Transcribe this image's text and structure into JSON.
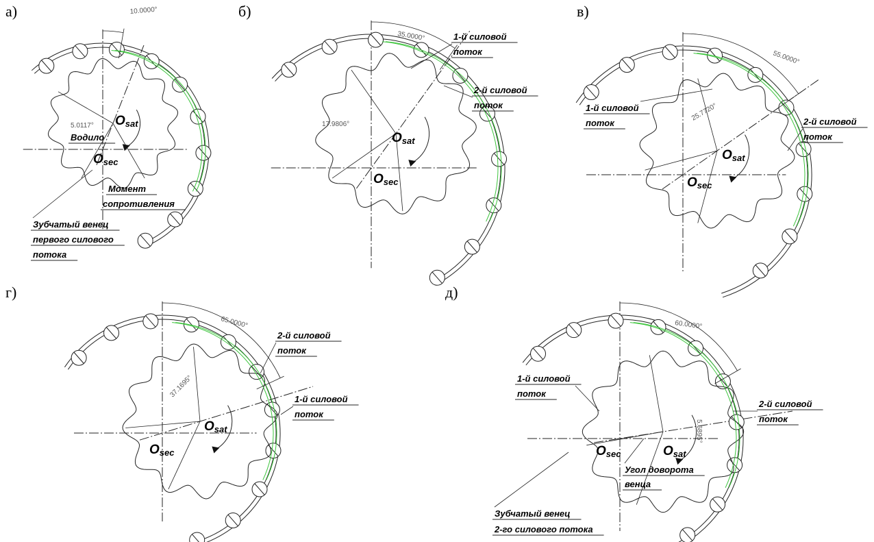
{
  "panels": [
    {
      "label": "а)",
      "texts": [
        "10.0000°",
        "5.0117°",
        "Водило",
        "Момент",
        "сопротивления",
        "Зубчатый венец",
        "первого силового",
        "потока"
      ],
      "centers": [
        {
          "letter": "O",
          "sub": "sat"
        },
        {
          "letter": "O",
          "sub": "sec"
        }
      ]
    },
    {
      "label": "б)",
      "texts": [
        "35.0000°",
        "1-й силовой",
        "поток",
        "2-й силовой",
        "поток",
        "17.9806°"
      ],
      "centers": [
        {
          "letter": "O",
          "sub": "sat"
        },
        {
          "letter": "O",
          "sub": "sec"
        }
      ]
    },
    {
      "label": "в)",
      "texts": [
        "55.0000°",
        "1-й силовой",
        "поток",
        "2-й силовой",
        "поток",
        "25.7720°"
      ],
      "centers": [
        {
          "letter": "O",
          "sub": "sat"
        },
        {
          "letter": "O",
          "sub": "sec"
        }
      ]
    },
    {
      "label": "г)",
      "texts": [
        "65.0000°",
        "2-й силовой",
        "поток",
        "1-й силовой",
        "поток",
        "37.1695°"
      ],
      "centers": [
        {
          "letter": "O",
          "sub": "sat"
        },
        {
          "letter": "O",
          "sub": "sec"
        }
      ]
    },
    {
      "label": "д)",
      "texts": [
        "60.0000°",
        "1-й силовой",
        "поток",
        "2-й силовой",
        "поток",
        "5.6895°",
        "Угол доворота",
        "венца",
        "Зубчатый венец",
        "2-го силового потока"
      ],
      "centers": [
        {
          "letter": "O",
          "sub": "sec"
        },
        {
          "letter": "O",
          "sub": "sat"
        }
      ]
    }
  ]
}
